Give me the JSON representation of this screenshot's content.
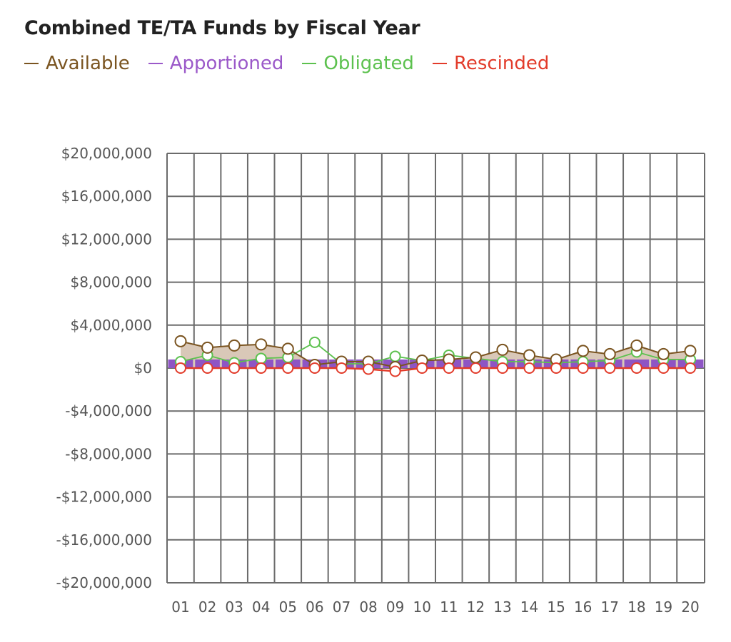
{
  "header": {
    "title": "Combined TE/TA Funds by Fiscal Year"
  },
  "legend": [
    {
      "label": "Available",
      "color": "#7a5420"
    },
    {
      "label": "Apportioned",
      "color": "#9b59c9"
    },
    {
      "label": "Obligated",
      "color": "#5cc14e"
    },
    {
      "label": "Rescinded",
      "color": "#e23b2a"
    }
  ],
  "colors": {
    "available_fill": "#d9c8b8",
    "apportioned_fill": "#8e55c4",
    "grid": "#6b6b6b",
    "tick_text": "#555555"
  },
  "chart_data": {
    "type": "line",
    "title": "Combined TE/TA Funds by Fiscal Year",
    "xlabel": "",
    "ylabel": "",
    "categories": [
      "01",
      "02",
      "03",
      "04",
      "05",
      "06",
      "07",
      "08",
      "09",
      "10",
      "11",
      "12",
      "13",
      "14",
      "15",
      "16",
      "17",
      "18",
      "19",
      "20"
    ],
    "ylim": [
      -20000000,
      20000000
    ],
    "yticks": [
      20000000,
      16000000,
      12000000,
      8000000,
      4000000,
      0,
      -4000000,
      -8000000,
      -12000000,
      -16000000,
      -20000000
    ],
    "ytick_labels": [
      "$20,000,000",
      "$16,000,000",
      "$12,000,000",
      "$8,000,000",
      "$4,000,000",
      "$0",
      "-$4,000,000",
      "-$8,000,000",
      "-$12,000,000",
      "-$16,000,000",
      "-$20,000,000"
    ],
    "grid": true,
    "legend_position": "top-left",
    "series": [
      {
        "name": "Available",
        "style": "area-line",
        "values": [
          2500000,
          1900000,
          2100000,
          2200000,
          1800000,
          300000,
          600000,
          600000,
          100000,
          700000,
          800000,
          1000000,
          1700000,
          1200000,
          800000,
          1600000,
          1300000,
          2100000,
          1300000,
          1600000
        ]
      },
      {
        "name": "Apportioned",
        "style": "bar",
        "values": [
          800000,
          800000,
          800000,
          800000,
          800000,
          800000,
          800000,
          800000,
          800000,
          800000,
          800000,
          800000,
          800000,
          800000,
          800000,
          800000,
          800000,
          800000,
          800000,
          800000
        ]
      },
      {
        "name": "Obligated",
        "style": "line",
        "values": [
          600000,
          1200000,
          500000,
          900000,
          1000000,
          2400000,
          400000,
          400000,
          1100000,
          700000,
          1200000,
          900000,
          600000,
          600000,
          500000,
          600000,
          700000,
          1500000,
          800000,
          800000
        ]
      },
      {
        "name": "Rescinded",
        "style": "line",
        "values": [
          0,
          0,
          0,
          0,
          0,
          0,
          0,
          -100000,
          -300000,
          0,
          0,
          0,
          0,
          0,
          0,
          0,
          0,
          0,
          0,
          0
        ]
      }
    ]
  }
}
